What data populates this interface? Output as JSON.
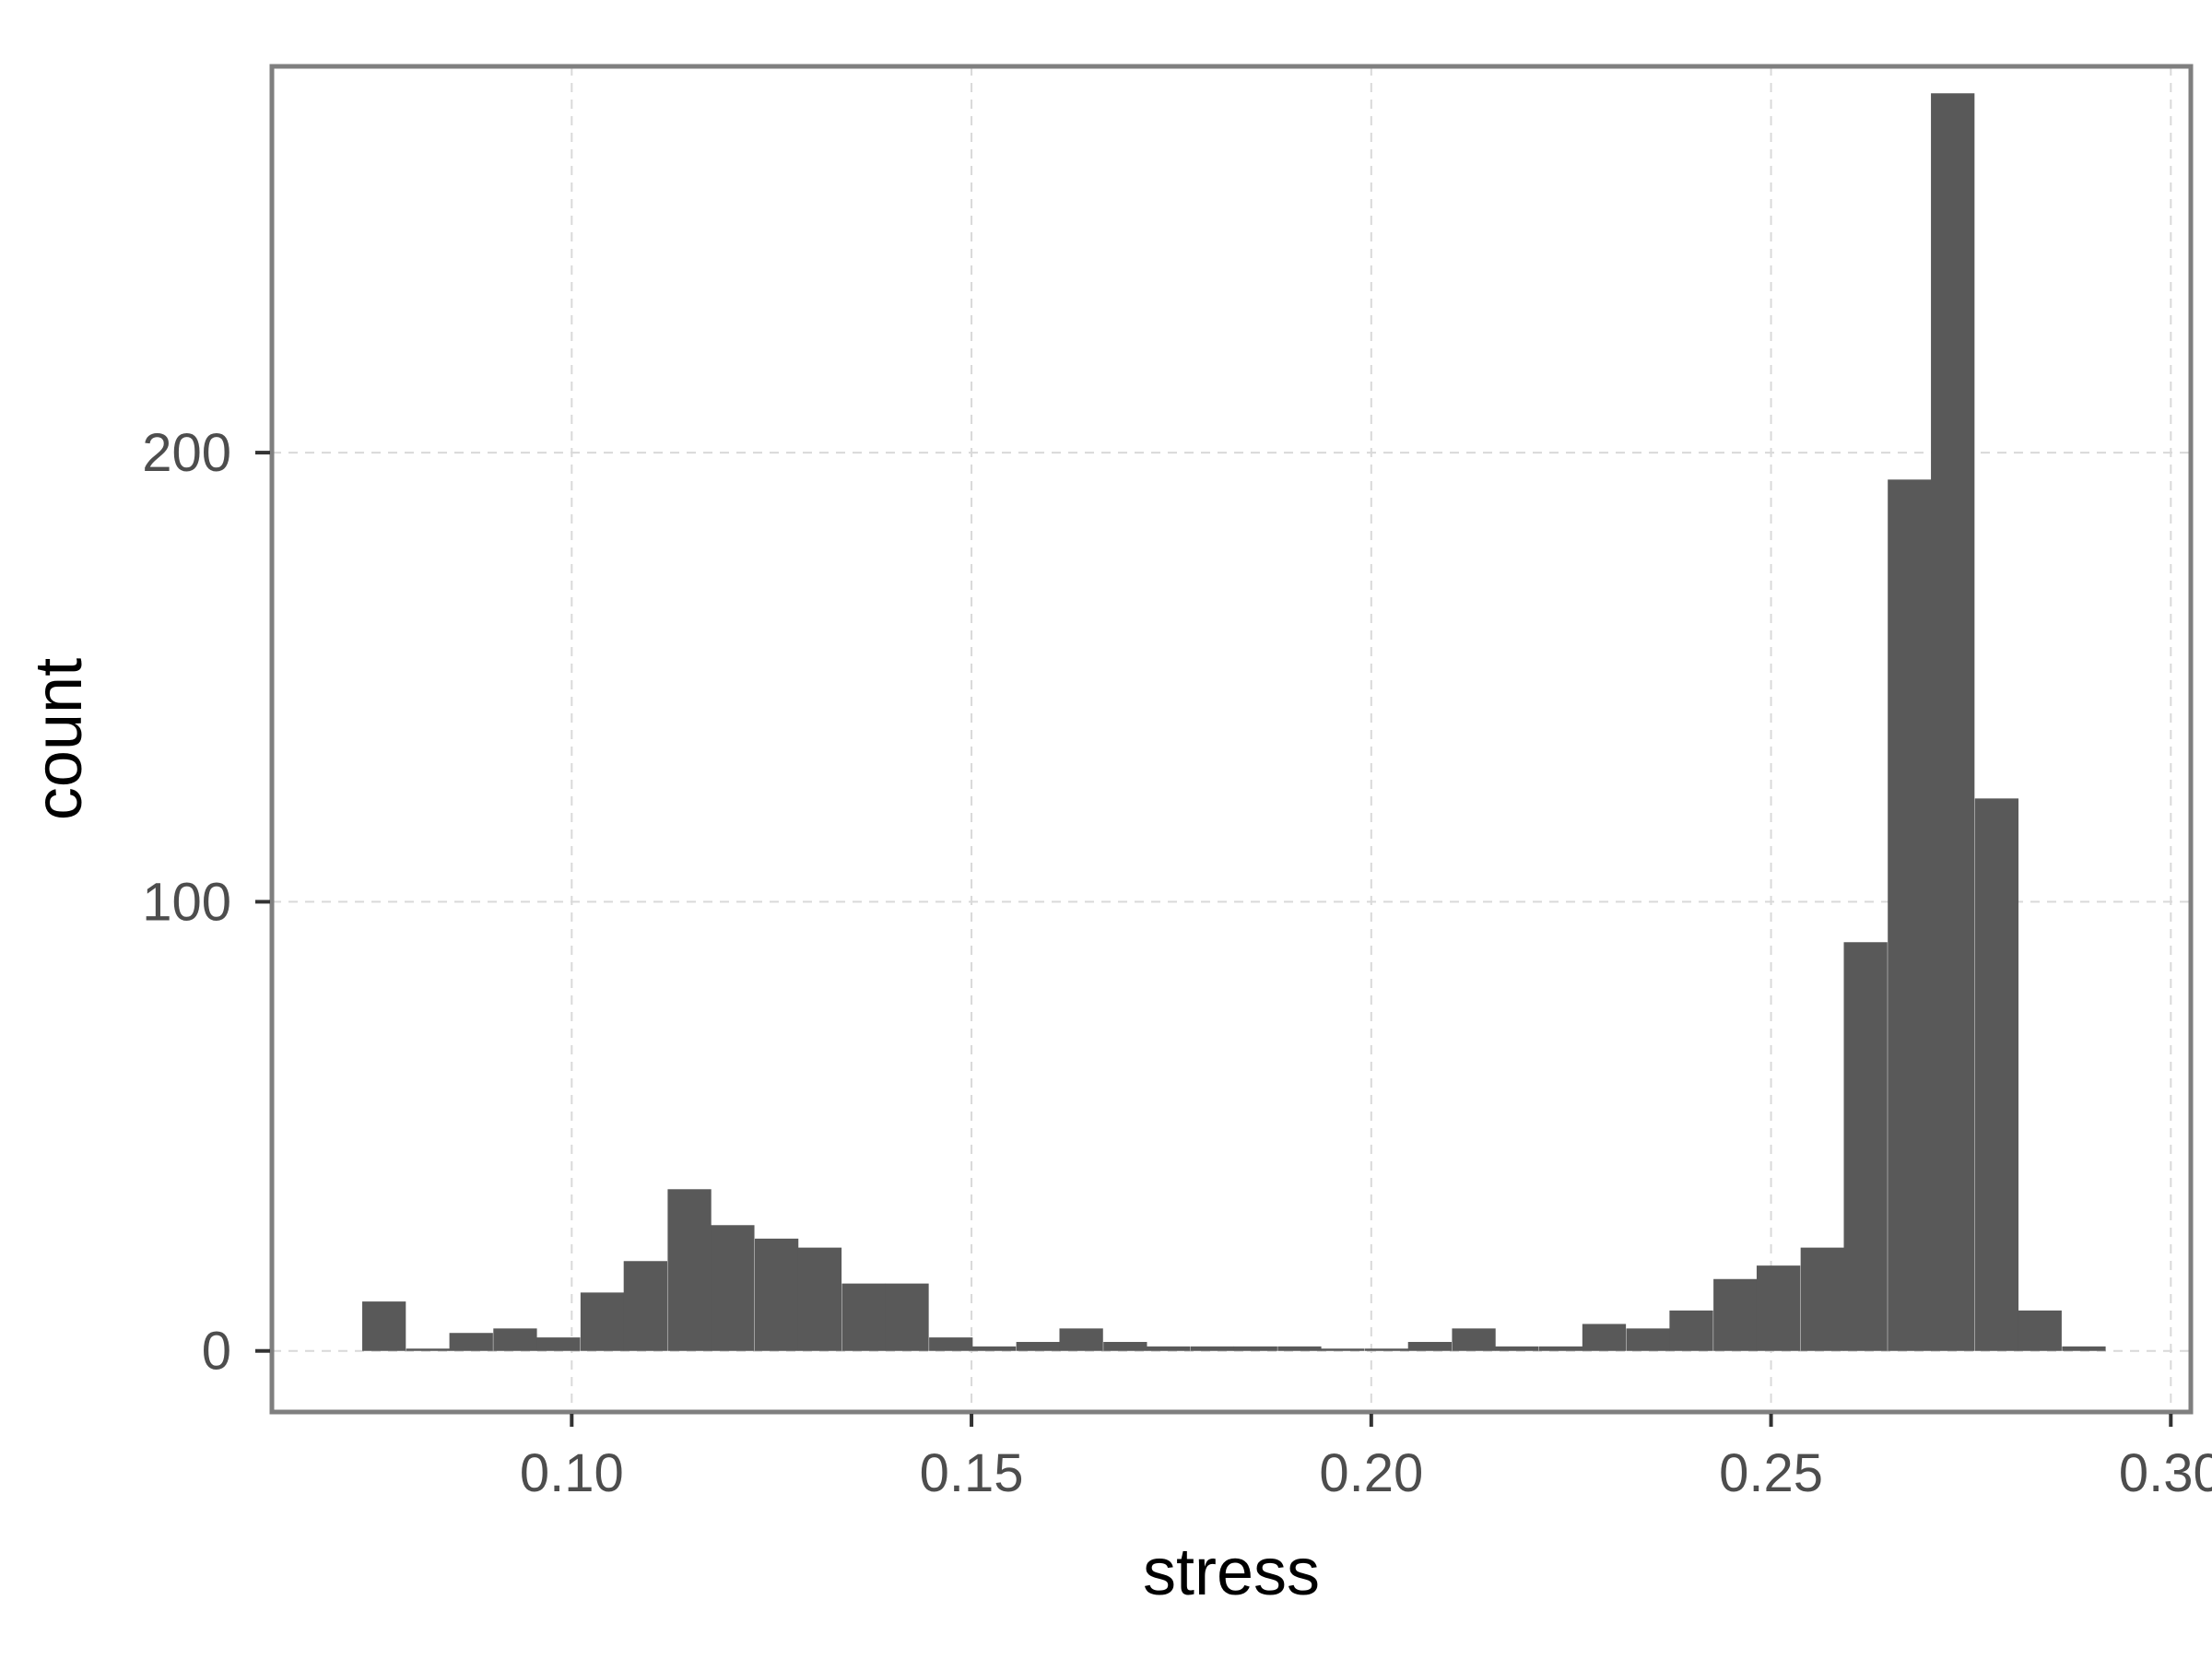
{
  "chart_data": {
    "type": "bar",
    "xlabel": "stress",
    "ylabel": "count",
    "xlim": [
      0.0625,
      0.3025
    ],
    "ylim": [
      -13.6,
      286
    ],
    "x_ticks": [
      0.1,
      0.15,
      0.2,
      0.25,
      0.3
    ],
    "x_tick_labels": [
      "0.10",
      "0.15",
      "0.20",
      "0.25",
      "0.30"
    ],
    "y_ticks": [
      0,
      100,
      200
    ],
    "y_tick_labels": [
      "0",
      "100",
      "200"
    ],
    "grid": true,
    "bin_width": 0.00545,
    "bins": [
      {
        "x0": 0.0738,
        "count": 11
      },
      {
        "x0": 0.0793,
        "count": 0
      },
      {
        "x0": 0.0847,
        "count": 4
      },
      {
        "x0": 0.0902,
        "count": 5
      },
      {
        "x0": 0.0956,
        "count": 3
      },
      {
        "x0": 0.1011,
        "count": 13
      },
      {
        "x0": 0.1065,
        "count": 20
      },
      {
        "x0": 0.112,
        "count": 36
      },
      {
        "x0": 0.1174,
        "count": 28
      },
      {
        "x0": 0.1229,
        "count": 25
      },
      {
        "x0": 0.1283,
        "count": 23
      },
      {
        "x0": 0.1338,
        "count": 15
      },
      {
        "x0": 0.1392,
        "count": 15
      },
      {
        "x0": 0.1447,
        "count": 3
      },
      {
        "x0": 0.1501,
        "count": 1
      },
      {
        "x0": 0.1556,
        "count": 2
      },
      {
        "x0": 0.161,
        "count": 5
      },
      {
        "x0": 0.1665,
        "count": 2
      },
      {
        "x0": 0.1719,
        "count": 1
      },
      {
        "x0": 0.1774,
        "count": 1
      },
      {
        "x0": 0.1828,
        "count": 1
      },
      {
        "x0": 0.1883,
        "count": 1
      },
      {
        "x0": 0.1937,
        "count": 0
      },
      {
        "x0": 0.1992,
        "count": 0
      },
      {
        "x0": 0.2046,
        "count": 2
      },
      {
        "x0": 0.2101,
        "count": 5
      },
      {
        "x0": 0.2155,
        "count": 1
      },
      {
        "x0": 0.221,
        "count": 1
      },
      {
        "x0": 0.2264,
        "count": 6
      },
      {
        "x0": 0.2319,
        "count": 5
      },
      {
        "x0": 0.2373,
        "count": 9
      },
      {
        "x0": 0.2428,
        "count": 16
      },
      {
        "x0": 0.2482,
        "count": 19
      },
      {
        "x0": 0.2537,
        "count": 23
      },
      {
        "x0": 0.2591,
        "count": 91
      },
      {
        "x0": 0.2646,
        "count": 194
      },
      {
        "x0": 0.27,
        "count": 280
      },
      {
        "x0": 0.2755,
        "count": 123
      },
      {
        "x0": 0.2809,
        "count": 9
      },
      {
        "x0": 0.2864,
        "count": 1
      }
    ],
    "colors": {
      "bar": "#595959",
      "grid": "#d9d9d9",
      "panel_border": "#7f7f7f",
      "tick": "#333333"
    }
  }
}
